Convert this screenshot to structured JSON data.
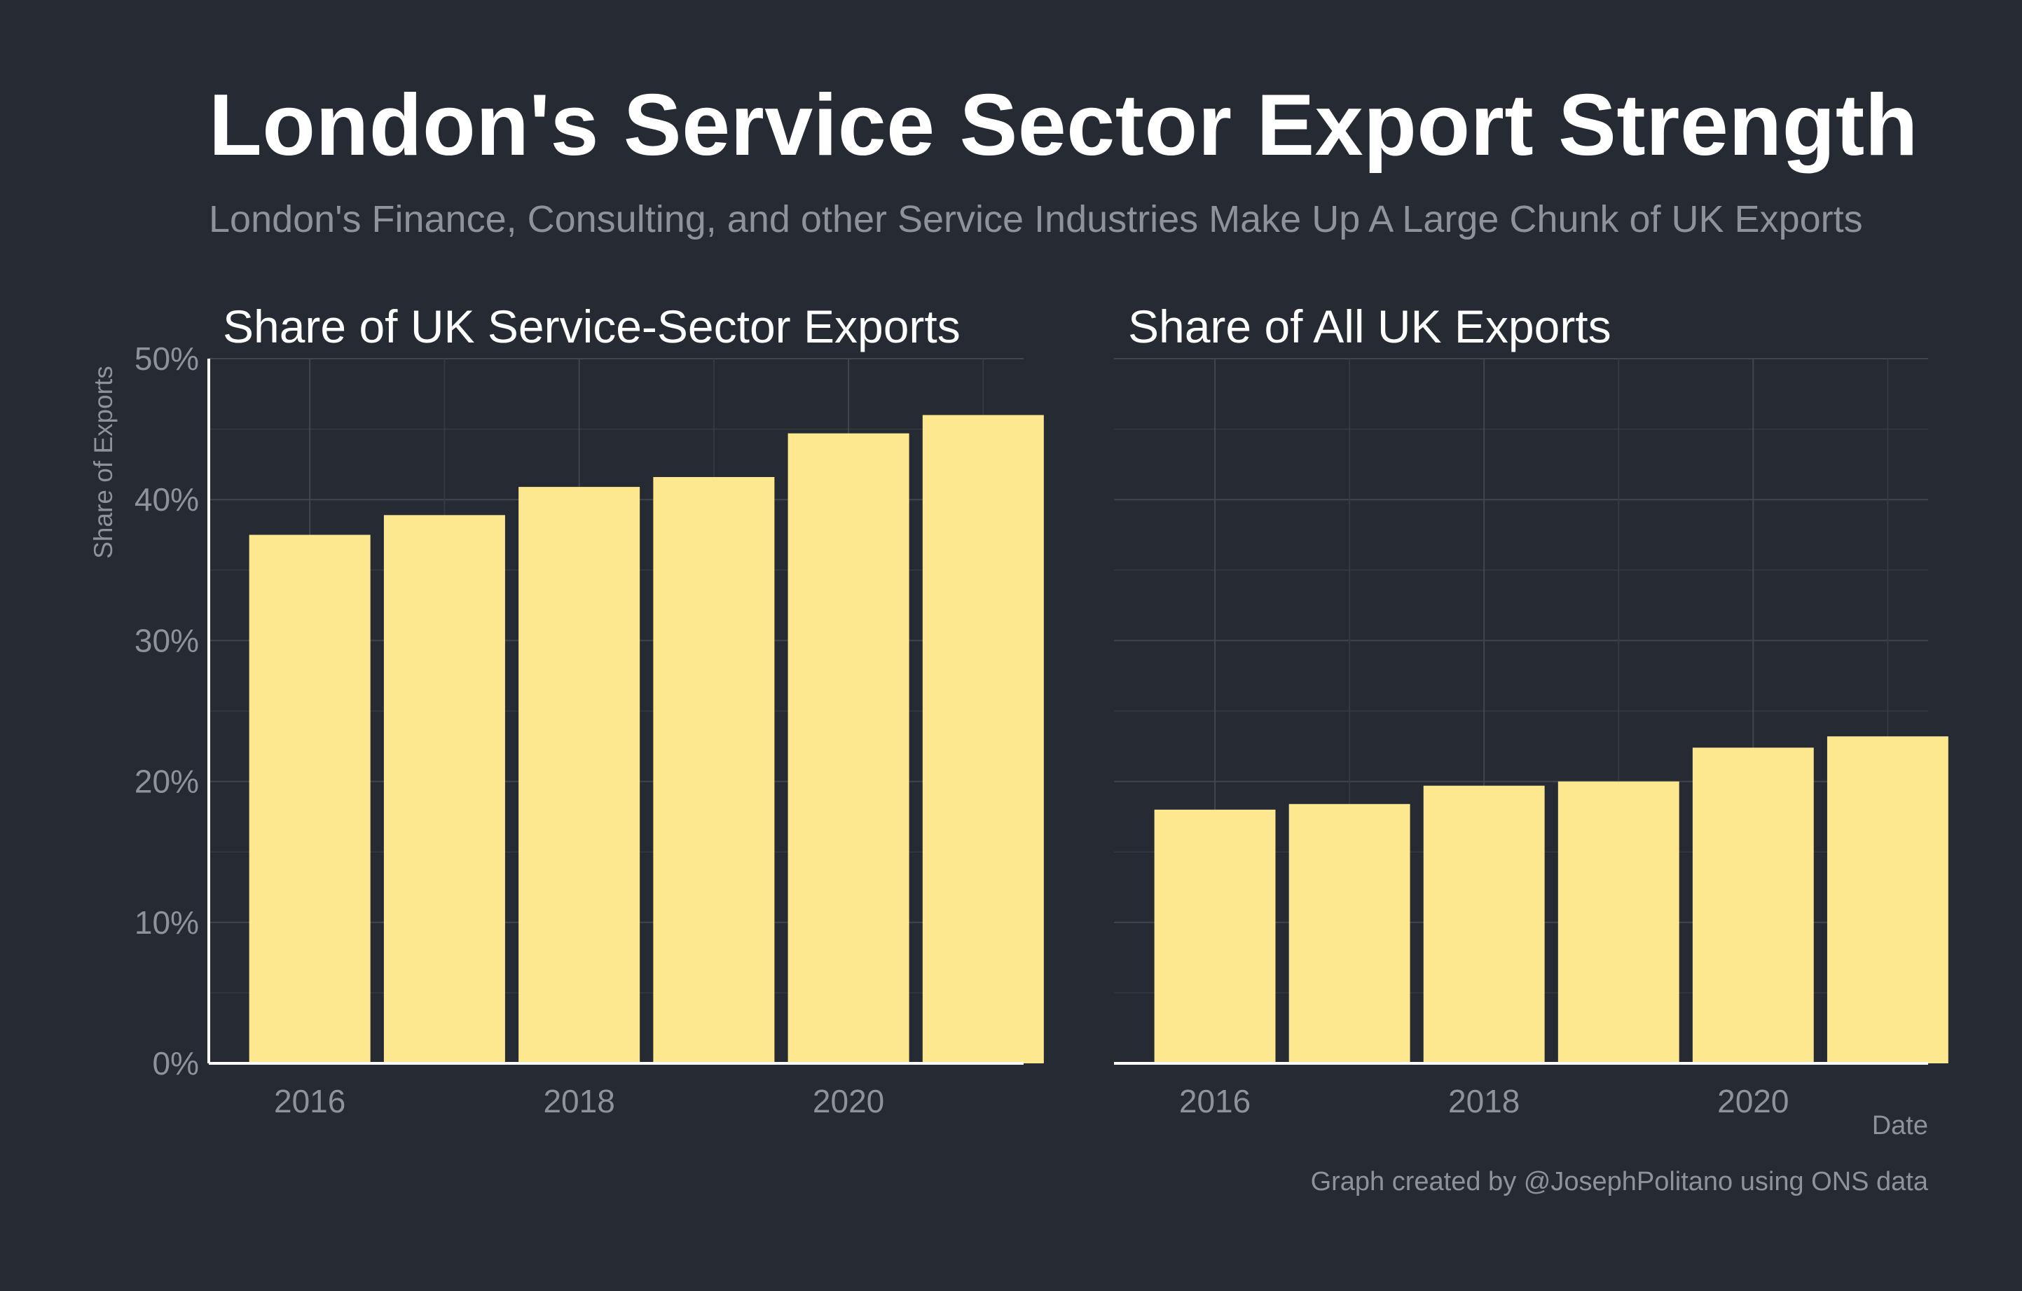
{
  "title": "London's Service Sector Export Strength",
  "subtitle": "London's Finance, Consulting, and other Service Industries Make Up A Large Chunk of UK Exports",
  "ylabel": "Share of Exports",
  "xlabel": "Date",
  "caption": "Graph created by @JosephPolitano using ONS data",
  "colors": {
    "background": "#252a33",
    "bar": "#fee88f",
    "grid_major": "#40454e",
    "grid_minor": "#343942",
    "axis": "#ffffff",
    "muted_text": "#8f929a"
  },
  "chart_data": [
    {
      "type": "bar",
      "title": "Share of UK Service-Sector Exports",
      "x": [
        2016,
        2017,
        2018,
        2019,
        2020,
        2021
      ],
      "x_tick_labels": [
        "2016",
        "2018",
        "2020"
      ],
      "values": [
        37.5,
        38.9,
        40.9,
        41.6,
        44.7,
        46.0
      ],
      "ylim": [
        0,
        50
      ],
      "y_tick_labels": [
        "0%",
        "10%",
        "20%",
        "30%",
        "40%",
        "50%"
      ],
      "ylabel": "Share of Exports",
      "xlabel": "",
      "grid": true
    },
    {
      "type": "bar",
      "title": "Share of All UK Exports",
      "x": [
        2016,
        2017,
        2018,
        2019,
        2020,
        2021
      ],
      "x_tick_labels": [
        "2016",
        "2018",
        "2020"
      ],
      "values": [
        18.0,
        18.4,
        19.7,
        20.0,
        22.4,
        23.2
      ],
      "ylim": [
        0,
        50
      ],
      "ylabel": "",
      "xlabel": "Date",
      "grid": true
    }
  ]
}
